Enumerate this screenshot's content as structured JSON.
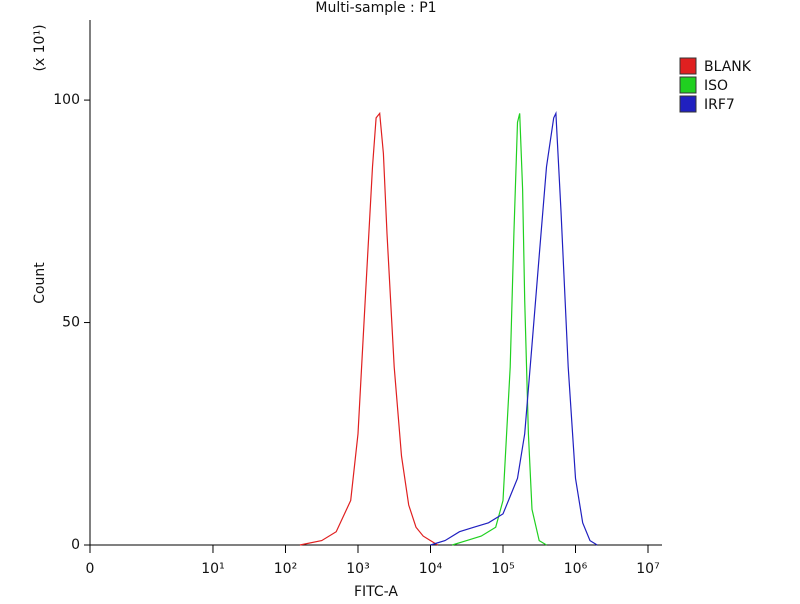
{
  "chart_data": {
    "type": "line",
    "title": "Multi-sample : P1",
    "x_label": "FITC-A",
    "y_label": "Count",
    "y_multiplier": "(x 10¹)",
    "xscale": "biexponential",
    "xlim": [
      0,
      15600000
    ],
    "xticks": [
      0,
      {
        "value": 10,
        "label": "10¹"
      },
      {
        "value": 100,
        "label": "10²"
      },
      {
        "value": 1000,
        "label": "10³"
      },
      {
        "value": 10000,
        "label": "10⁴"
      },
      {
        "value": 100000,
        "label": "10⁵"
      },
      {
        "value": 1000000,
        "label": "10⁶"
      },
      {
        "value": 10000000,
        "label": "10⁷"
      }
    ],
    "ylim": [
      0,
      118
    ],
    "yticks": [
      0,
      50,
      100
    ],
    "legend": "right",
    "series": [
      {
        "name": "BLANK",
        "color": "#e02020",
        "x": [
          158,
          316,
          501,
          794,
          1000,
          1259,
          1585,
          1778,
          1995,
          2239,
          2512,
          3162,
          3981,
          5012,
          6310,
          7943,
          10000,
          12589
        ],
        "values": [
          0,
          1,
          3,
          10,
          25,
          55,
          85,
          96,
          97,
          88,
          70,
          40,
          20,
          9,
          4,
          2,
          1,
          0
        ]
      },
      {
        "name": "ISO",
        "color": "#20d020",
        "x": [
          19953,
          31623,
          50119,
          79433,
          100000,
          125893,
          141254,
          158489,
          169824,
          186209,
          199526,
          223872,
          251189,
          316228,
          398107
        ],
        "values": [
          0,
          1,
          2,
          4,
          10,
          40,
          70,
          95,
          97,
          80,
          55,
          25,
          8,
          1,
          0
        ]
      },
      {
        "name": "IRF7",
        "color": "#2020c0",
        "x": [
          10000,
          15849,
          25119,
          39811,
          63096,
          100000,
          158489,
          199526,
          251189,
          316228,
          398107,
          501187,
          537032,
          630957,
          794328,
          1000000,
          1258925,
          1584893,
          1995262
        ],
        "values": [
          0,
          1,
          3,
          4,
          5,
          7,
          15,
          25,
          45,
          65,
          85,
          96,
          97,
          75,
          40,
          15,
          5,
          1,
          0
        ]
      }
    ]
  }
}
